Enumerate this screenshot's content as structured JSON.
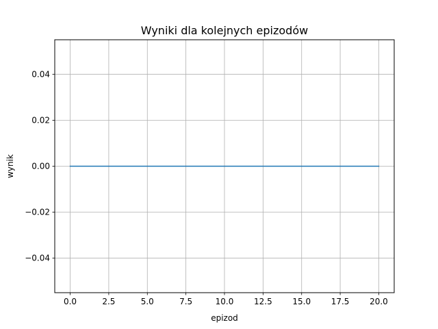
{
  "chart_data": {
    "type": "line",
    "title": "Wyniki dla kolejnych epizodów",
    "xlabel": "epizod",
    "ylabel": "wynik",
    "xlim": [
      -1.0,
      21.0
    ],
    "ylim": [
      -0.055,
      0.055
    ],
    "x_ticks": [
      0.0,
      2.5,
      5.0,
      7.5,
      10.0,
      12.5,
      15.0,
      17.5,
      20.0
    ],
    "x_tick_labels": [
      "0.0",
      "2.5",
      "5.0",
      "7.5",
      "10.0",
      "12.5",
      "15.0",
      "17.5",
      "20.0"
    ],
    "y_ticks": [
      -0.04,
      -0.02,
      0.0,
      0.02,
      0.04
    ],
    "y_tick_labels": [
      "−0.04",
      "−0.02",
      "0.00",
      "0.02",
      "0.04"
    ],
    "grid": true,
    "series": [
      {
        "color": "#1f77b4",
        "x": [
          0,
          1,
          2,
          3,
          4,
          5,
          6,
          7,
          8,
          9,
          10,
          11,
          12,
          13,
          14,
          15,
          16,
          17,
          18,
          19,
          20
        ],
        "y": [
          0,
          0,
          0,
          0,
          0,
          0,
          0,
          0,
          0,
          0,
          0,
          0,
          0,
          0,
          0,
          0,
          0,
          0,
          0,
          0,
          0
        ]
      }
    ]
  }
}
